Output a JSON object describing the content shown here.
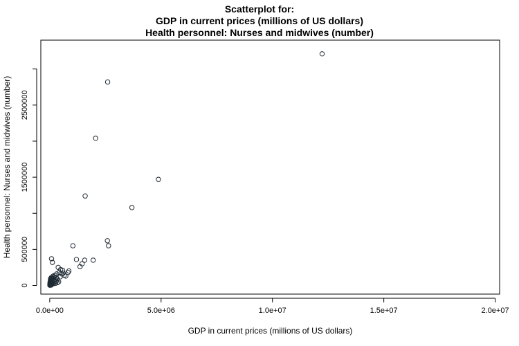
{
  "chart_data": {
    "type": "scatter",
    "title_lines": [
      "Scatterplot for:",
      "GDP in current prices (millions of US dollars)",
      "Health personnel: Nurses and midwives (number)"
    ],
    "xlabel": "GDP in current prices (millions of US dollars)",
    "ylabel": "Health personnel: Nurses and midwives (number)",
    "xlim": [
      -400000,
      20200000
    ],
    "ylim": [
      -120000,
      3400000
    ],
    "x_ticks": [
      0,
      5000000,
      10000000,
      15000000,
      20000000
    ],
    "x_tick_labels": [
      "0.0e+00",
      "5.0e+06",
      "1.0e+07",
      "1.5e+07",
      "2.0e+07"
    ],
    "y_ticks": [
      0,
      500000,
      1000000,
      1500000,
      2000000,
      2500000,
      3000000
    ],
    "y_tick_labels": [
      "0",
      "500000",
      "",
      "1500000",
      "",
      "2500000",
      ""
    ],
    "grid": false,
    "marker": "open-circle",
    "points": [
      [
        12230000,
        3210000
      ],
      [
        2600000,
        2820000
      ],
      [
        2060000,
        2040000
      ],
      [
        4880000,
        1470000
      ],
      [
        1590000,
        1240000
      ],
      [
        3690000,
        1080000
      ],
      [
        2590000,
        620000
      ],
      [
        2640000,
        550000
      ],
      [
        1040000,
        550000
      ],
      [
        1200000,
        360000
      ],
      [
        1570000,
        350000
      ],
      [
        1950000,
        350000
      ],
      [
        1450000,
        300000
      ],
      [
        1360000,
        260000
      ],
      [
        80000,
        370000
      ],
      [
        120000,
        320000
      ],
      [
        380000,
        250000
      ],
      [
        490000,
        220000
      ],
      [
        580000,
        210000
      ],
      [
        860000,
        200000
      ],
      [
        820000,
        180000
      ],
      [
        430000,
        180000
      ],
      [
        310000,
        160000
      ],
      [
        530000,
        160000
      ],
      [
        650000,
        140000
      ],
      [
        720000,
        130000
      ],
      [
        230000,
        140000
      ],
      [
        200000,
        120000
      ],
      [
        160000,
        110000
      ],
      [
        120000,
        100000
      ],
      [
        100000,
        80000
      ],
      [
        60000,
        70000
      ],
      [
        250000,
        80000
      ],
      [
        300000,
        60000
      ],
      [
        400000,
        50000
      ],
      [
        350000,
        40000
      ],
      [
        50000,
        50000
      ],
      [
        80000,
        30000
      ],
      [
        30000,
        20000
      ],
      [
        20000,
        10000
      ],
      [
        10000,
        5000
      ],
      [
        40000,
        35000
      ],
      [
        70000,
        15000
      ],
      [
        90000,
        60000
      ],
      [
        140000,
        90000
      ],
      [
        180000,
        70000
      ],
      [
        220000,
        50000
      ],
      [
        260000,
        30000
      ],
      [
        110000,
        20000
      ],
      [
        15000,
        25000
      ],
      [
        25000,
        45000
      ],
      [
        35000,
        8000
      ],
      [
        55000,
        18000
      ],
      [
        65000,
        90000
      ],
      [
        5000,
        3000
      ],
      [
        45000,
        60000
      ],
      [
        130000,
        40000
      ],
      [
        170000,
        25000
      ],
      [
        290000,
        110000
      ],
      [
        340000,
        90000
      ],
      [
        470000,
        120000
      ],
      [
        600000,
        170000
      ],
      [
        75000,
        110000
      ],
      [
        95000,
        40000
      ],
      [
        150000,
        130000
      ],
      [
        12000,
        40000
      ],
      [
        28000,
        70000
      ],
      [
        38000,
        95000
      ],
      [
        8000,
        15000
      ],
      [
        60000,
        5000
      ]
    ]
  }
}
